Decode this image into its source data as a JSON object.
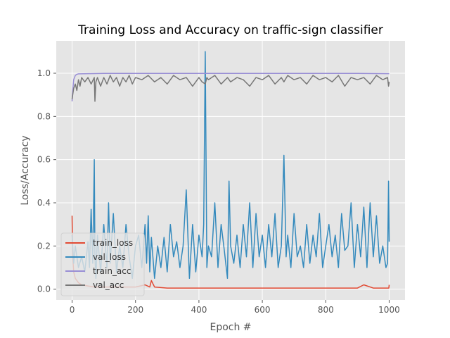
{
  "chart_data": {
    "type": "line",
    "title": "Training Loss and Accuracy on traffic-sign classifier",
    "xlabel": "Epoch #",
    "ylabel": "Loss/Accuracy",
    "xlim": [
      -50,
      1050
    ],
    "ylim": [
      -0.05,
      1.15
    ],
    "xticks": [
      0,
      200,
      400,
      600,
      800,
      1000
    ],
    "yticks": [
      0.0,
      0.2,
      0.4,
      0.6,
      0.8,
      1.0
    ],
    "xtick_labels": [
      "0",
      "200",
      "400",
      "600",
      "800",
      "1000"
    ],
    "ytick_labels": [
      "0.0",
      "0.2",
      "0.4",
      "0.6",
      "0.8",
      "1.0"
    ],
    "grid": true,
    "style": "ggplot",
    "legend_position": "lower-left",
    "series": [
      {
        "name": "train_loss",
        "color": "#E24A33",
        "x": [
          0,
          2,
          5,
          10,
          20,
          30,
          50,
          70,
          100,
          150,
          200,
          230,
          245,
          250,
          260,
          300,
          350,
          400,
          450,
          500,
          550,
          600,
          650,
          700,
          750,
          800,
          850,
          900,
          920,
          950,
          999,
          1000
        ],
        "values": [
          0.34,
          0.15,
          0.08,
          0.05,
          0.03,
          0.02,
          0.015,
          0.01,
          0.01,
          0.01,
          0.01,
          0.02,
          0.01,
          0.04,
          0.01,
          0.005,
          0.005,
          0.005,
          0.005,
          0.005,
          0.005,
          0.005,
          0.005,
          0.005,
          0.005,
          0.005,
          0.005,
          0.005,
          0.02,
          0.005,
          0.005,
          0.02
        ]
      },
      {
        "name": "val_loss",
        "color": "#348ABD",
        "x": [
          0,
          5,
          10,
          20,
          30,
          40,
          50,
          55,
          60,
          65,
          70,
          72,
          75,
          80,
          90,
          100,
          110,
          115,
          120,
          130,
          140,
          150,
          160,
          170,
          180,
          190,
          200,
          210,
          220,
          230,
          235,
          240,
          245,
          250,
          260,
          270,
          280,
          290,
          300,
          310,
          320,
          330,
          340,
          350,
          360,
          370,
          380,
          390,
          400,
          410,
          415,
          420,
          425,
          430,
          440,
          450,
          460,
          470,
          480,
          490,
          495,
          500,
          510,
          520,
          530,
          540,
          550,
          560,
          570,
          580,
          590,
          600,
          610,
          620,
          630,
          640,
          650,
          660,
          668,
          675,
          680,
          690,
          700,
          710,
          720,
          730,
          740,
          750,
          760,
          770,
          780,
          790,
          800,
          810,
          820,
          830,
          840,
          850,
          860,
          870,
          880,
          890,
          900,
          910,
          920,
          930,
          940,
          950,
          960,
          970,
          980,
          990,
          995,
          998,
          1000
        ],
        "values": [
          0.25,
          0.12,
          0.2,
          0.1,
          0.15,
          0.08,
          0.22,
          0.1,
          0.37,
          0.12,
          0.6,
          0.15,
          0.05,
          0.25,
          0.08,
          0.3,
          0.1,
          0.4,
          0.12,
          0.35,
          0.08,
          0.2,
          0.1,
          0.3,
          0.15,
          0.05,
          0.2,
          0.25,
          0.1,
          0.3,
          0.12,
          0.34,
          0.08,
          0.24,
          0.05,
          0.2,
          0.1,
          0.24,
          0.08,
          0.3,
          0.15,
          0.22,
          0.1,
          0.2,
          0.46,
          0.05,
          0.3,
          0.08,
          0.25,
          0.15,
          0.3,
          1.1,
          0.1,
          0.2,
          0.15,
          0.4,
          0.1,
          0.3,
          0.18,
          0.05,
          0.5,
          0.2,
          0.12,
          0.25,
          0.1,
          0.3,
          0.15,
          0.4,
          0.1,
          0.35,
          0.15,
          0.25,
          0.1,
          0.3,
          0.15,
          0.35,
          0.1,
          0.2,
          0.62,
          0.15,
          0.25,
          0.1,
          0.35,
          0.15,
          0.2,
          0.1,
          0.3,
          0.12,
          0.25,
          0.15,
          0.35,
          0.1,
          0.2,
          0.3,
          0.15,
          0.25,
          0.1,
          0.35,
          0.18,
          0.2,
          0.4,
          0.1,
          0.3,
          0.15,
          0.38,
          0.1,
          0.4,
          0.15,
          0.34,
          0.12,
          0.2,
          0.1,
          0.12,
          0.5,
          0.22
        ]
      },
      {
        "name": "train_acc",
        "color": "#988ED5",
        "x": [
          0,
          2,
          5,
          10,
          15,
          20,
          50,
          100,
          200,
          300,
          400,
          500,
          600,
          700,
          800,
          900,
          1000
        ],
        "values": [
          0.87,
          0.92,
          0.97,
          0.99,
          0.995,
          0.997,
          0.998,
          0.999,
          0.999,
          0.999,
          0.999,
          0.999,
          0.999,
          0.999,
          0.999,
          0.999,
          0.998
        ]
      },
      {
        "name": "val_acc",
        "color": "#777777",
        "x": [
          0,
          5,
          10,
          15,
          20,
          25,
          30,
          40,
          50,
          60,
          70,
          72,
          75,
          80,
          90,
          100,
          110,
          120,
          130,
          140,
          150,
          160,
          170,
          180,
          190,
          200,
          220,
          240,
          260,
          280,
          300,
          320,
          340,
          360,
          380,
          400,
          410,
          420,
          425,
          430,
          450,
          470,
          490,
          500,
          520,
          540,
          560,
          580,
          600,
          620,
          640,
          660,
          668,
          680,
          700,
          720,
          740,
          760,
          780,
          800,
          820,
          840,
          860,
          880,
          900,
          920,
          940,
          960,
          980,
          995,
          998,
          1000
        ],
        "values": [
          0.88,
          0.93,
          0.95,
          0.92,
          0.97,
          0.94,
          0.98,
          0.96,
          0.98,
          0.95,
          0.98,
          0.87,
          0.96,
          0.98,
          0.94,
          0.98,
          0.95,
          0.99,
          0.96,
          0.98,
          0.94,
          0.98,
          0.96,
          0.99,
          0.95,
          0.98,
          0.97,
          0.99,
          0.96,
          0.98,
          0.95,
          0.99,
          0.97,
          0.98,
          0.94,
          0.98,
          0.96,
          0.95,
          0.98,
          0.97,
          0.99,
          0.95,
          0.98,
          0.96,
          0.98,
          0.97,
          0.94,
          0.98,
          0.97,
          0.99,
          0.95,
          0.98,
          0.96,
          0.99,
          0.97,
          0.98,
          0.95,
          0.99,
          0.97,
          0.98,
          0.96,
          0.99,
          0.94,
          0.98,
          0.97,
          0.98,
          0.95,
          0.99,
          0.97,
          0.98,
          0.94,
          0.96
        ]
      }
    ]
  }
}
